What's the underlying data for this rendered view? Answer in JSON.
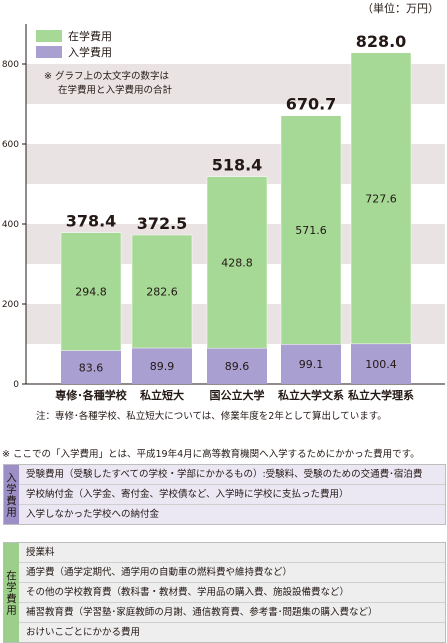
{
  "unit_label": "（単位：万円）",
  "legend": {
    "tuition_label": "在学費用",
    "entrance_label": "入学費用"
  },
  "chart_note": {
    "line1": "※ グラフ上の太文字の数字は",
    "line2": "在学費用と入学費用の合計"
  },
  "footnote": "注：専修･各種学校、私立短大については、修業年度を2年として算出しています。",
  "definition_note": "※ ここでの「入学費用」とは、平成19年4月に高等教育機関へ入学するためにかかった費用です。",
  "entrance_table": {
    "side_label": "入学費用",
    "rows": [
      "受験費用（受験したすべての学校・学部にかかるもの）:受験料、受験のための交通費･宿泊費",
      "学校納付金（入学金、寄付金、学校債など、入学時に学校に支払った費用）",
      "入学しなかった学校への納付金"
    ]
  },
  "tuition_table": {
    "side_label": "在学費用",
    "rows": [
      "授業料",
      "通学費（通学定期代、通学用の自動車の燃料費や維持費など）",
      "その他の学校教育費（教科書・教材費、学用品の購入費、施設設備費など）",
      "補習教育費（学習塾･家庭教師の月謝、通信教育費、参考書･問題集の購入費など）",
      "おけいこごとにかかる費用"
    ]
  },
  "colors": {
    "tuition": "#a6d995",
    "entrance": "#a99fd0",
    "band": "#e9e3e3"
  },
  "chart_data": {
    "type": "bar",
    "stacked": true,
    "categories": [
      "専修･各種学校",
      "私立短大",
      "国公立大学",
      "私立大学文系",
      "私立大学理系"
    ],
    "series": [
      {
        "name": "入学費用",
        "values": [
          83.6,
          89.9,
          89.6,
          99.1,
          100.4
        ]
      },
      {
        "name": "在学費用",
        "values": [
          294.8,
          282.6,
          428.8,
          571.6,
          727.6
        ]
      }
    ],
    "totals": [
      "378.4",
      "372.5",
      "518.4",
      "670.7",
      "828.0"
    ],
    "ylim": [
      0,
      900
    ],
    "yticks": [
      0,
      200,
      400,
      600,
      800
    ],
    "grid": "alternating bands",
    "legend_position": "top-left"
  }
}
